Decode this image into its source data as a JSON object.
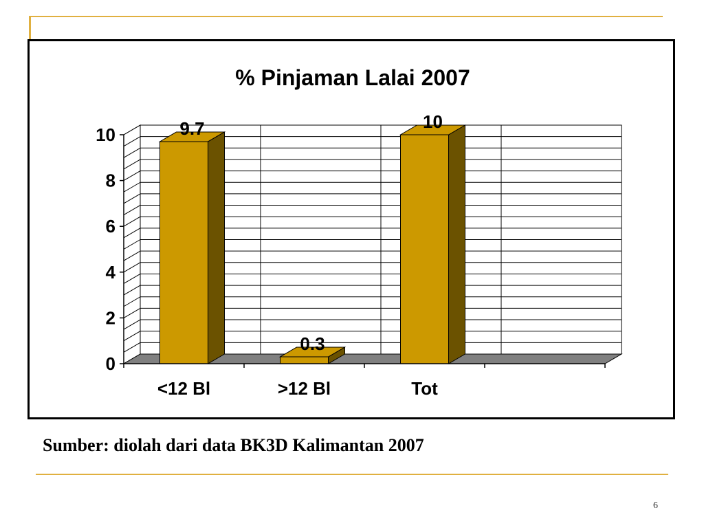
{
  "slide": {
    "source": "Sumber: diolah dari data BK3D Kalimantan 2007",
    "page_number": "6",
    "accent_color": "#e0b040"
  },
  "chart_data": {
    "type": "bar",
    "title": "% Pinjaman Lalai 2007",
    "categories": [
      "<12 Bl",
      ">12 Bl",
      "Tot",
      ""
    ],
    "values": [
      9.7,
      0.3,
      10,
      null
    ],
    "data_labels": [
      "9.7",
      "0.3",
      "10",
      ""
    ],
    "ylim": [
      0,
      10
    ],
    "yticks": [
      0,
      2,
      4,
      6,
      8,
      10
    ],
    "xlabel": "",
    "ylabel": "",
    "grid": true,
    "three_d": true,
    "bar_color": "#cc9900",
    "bar_side_color": "#6b5200",
    "floor_color": "#808080"
  }
}
